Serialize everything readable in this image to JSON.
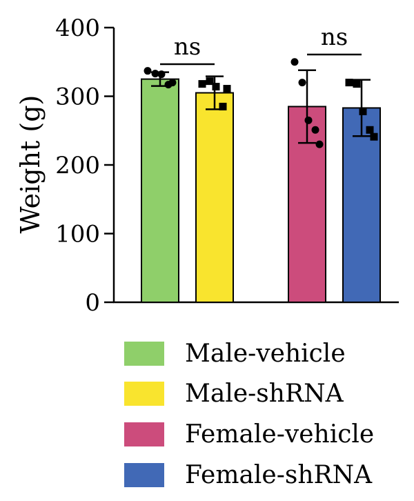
{
  "chart_data": {
    "type": "bar",
    "ylabel": "Weight (g)",
    "ylim": [
      0,
      400
    ],
    "yticks": [
      0,
      100,
      200,
      300,
      400
    ],
    "grid": false,
    "legend_position": "bottom",
    "series": [
      {
        "name": "Male-vehicle",
        "color": "#8fcf6a",
        "mean": 325,
        "error": 10,
        "points": [
          337,
          333,
          332,
          317,
          320
        ],
        "marker": "circle"
      },
      {
        "name": "Male-shRNA",
        "color": "#f9e42e",
        "mean": 305,
        "error": 24,
        "points": [
          318,
          322,
          314,
          285,
          311
        ],
        "marker": "square"
      },
      {
        "name": "Female-vehicle",
        "color": "#cc4c7c",
        "mean": 285,
        "error": 53,
        "points": [
          350,
          320,
          265,
          251,
          230
        ],
        "marker": "circle"
      },
      {
        "name": "Female-shRNA",
        "color": "#4169b6",
        "mean": 283,
        "error": 41,
        "points": [
          320,
          318,
          278,
          251,
          241
        ],
        "marker": "square"
      }
    ],
    "comparisons": [
      {
        "between": [
          "Male-vehicle",
          "Male-shRNA"
        ],
        "label": "ns"
      },
      {
        "between": [
          "Female-vehicle",
          "Female-shRNA"
        ],
        "label": "ns"
      }
    ]
  }
}
